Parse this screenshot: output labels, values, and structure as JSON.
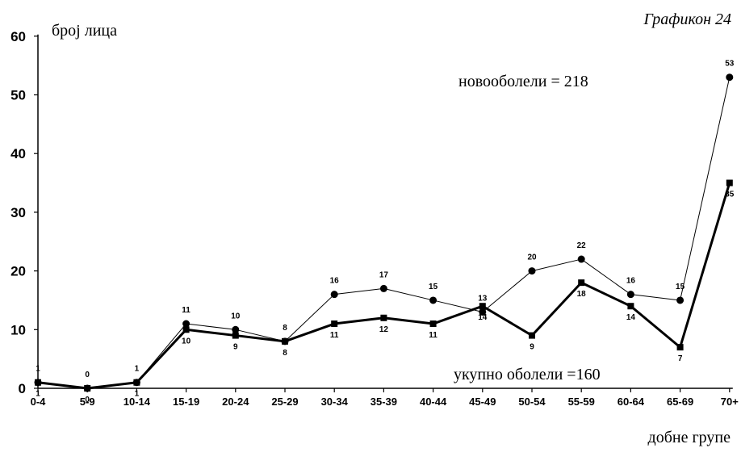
{
  "chart_data": {
    "type": "line",
    "title": "Графикон 24",
    "ylabel": "број лица",
    "xlabel": "добне групе",
    "categories": [
      "0-4",
      "5-9",
      "10-14",
      "15-19",
      "20-24",
      "25-29",
      "30-34",
      "35-39",
      "40-44",
      "45-49",
      "50-54",
      "55-59",
      "60-64",
      "65-69",
      "70+"
    ],
    "ylim": [
      0,
      60
    ],
    "yticks": [
      0,
      10,
      20,
      30,
      40,
      50,
      60
    ],
    "grid": false,
    "series": [
      {
        "name": "новооболели = 218",
        "marker": "circle",
        "values": [
          1,
          0,
          1,
          11,
          10,
          8,
          16,
          17,
          15,
          13,
          20,
          22,
          16,
          15,
          53
        ],
        "color": "#000000"
      },
      {
        "name": "укупно оболели =160",
        "marker": "square",
        "values": [
          1,
          0,
          1,
          10,
          9,
          8,
          11,
          12,
          11,
          14,
          9,
          18,
          14,
          7,
          35
        ],
        "color": "#000000"
      }
    ]
  }
}
